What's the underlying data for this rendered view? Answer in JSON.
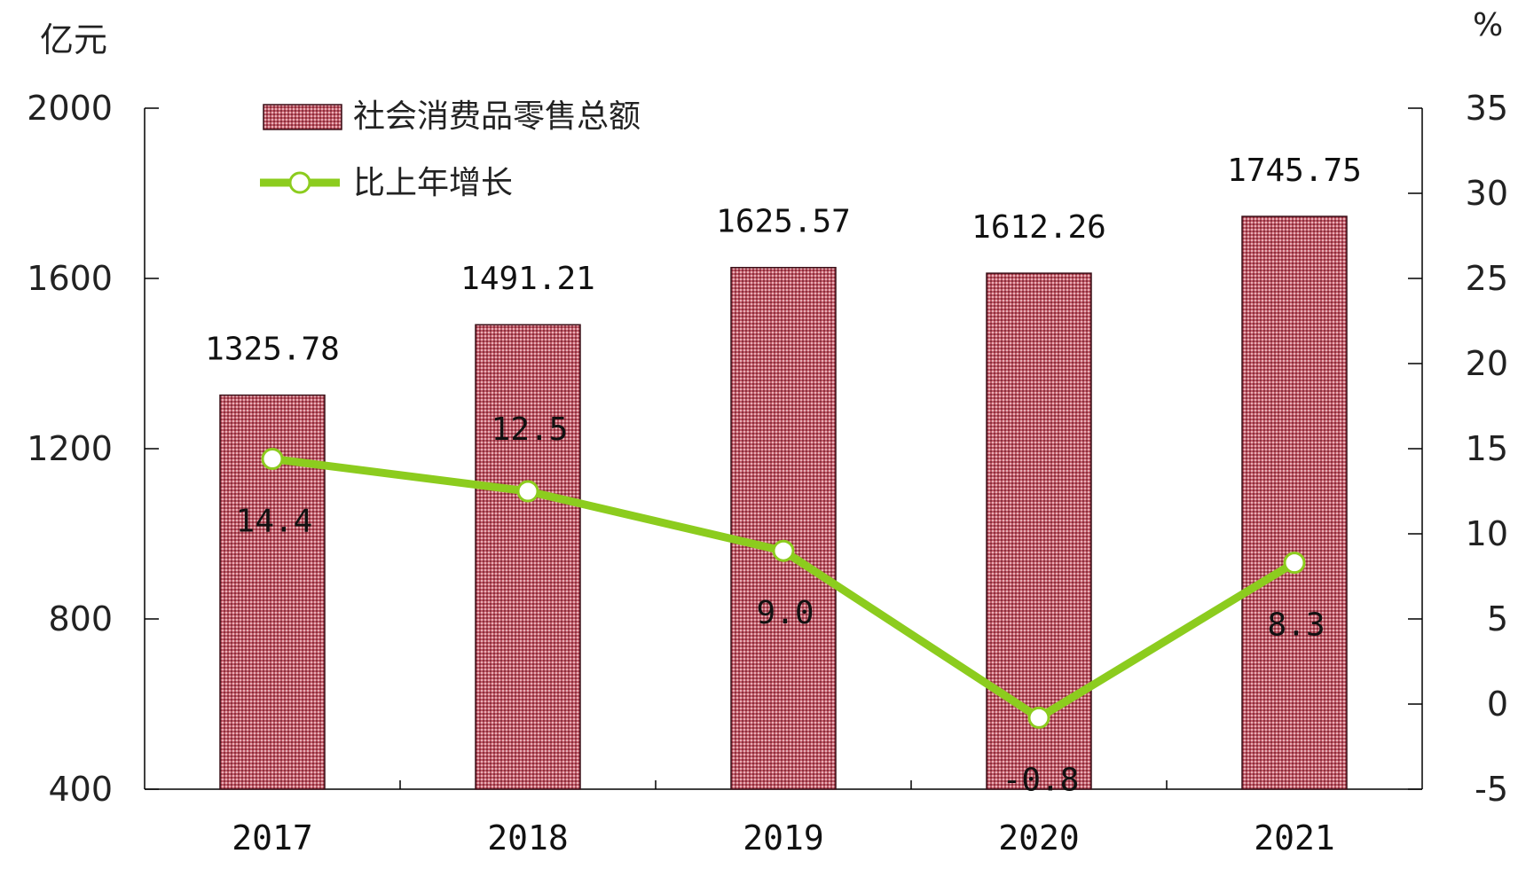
{
  "chart_data": {
    "type": "bar",
    "categories": [
      "2017",
      "2018",
      "2019",
      "2020",
      "2021"
    ],
    "y_left_unit": "亿元",
    "y_right_unit": "%",
    "y_left_ticks": [
      "2000",
      "1600",
      "1200",
      "800",
      "400"
    ],
    "y_right_ticks": [
      "35",
      "30",
      "25",
      "20",
      "15",
      "10",
      "5",
      "0",
      "-5"
    ],
    "y_left_range": [
      400,
      2000
    ],
    "y_right_range": [
      -5,
      35
    ],
    "grid": false,
    "legend_position": "top-left",
    "series": [
      {
        "name": "社会消费品零售总额",
        "type": "bar",
        "axis": "left",
        "values": [
          1325.78,
          1491.21,
          1625.57,
          1612.26,
          1745.75
        ],
        "labels": [
          "1325.78",
          "1491.21",
          "1625.57",
          "1612.26",
          "1745.75"
        ]
      },
      {
        "name": "比上年增长",
        "type": "line",
        "axis": "right",
        "values": [
          14.4,
          12.5,
          9.0,
          -0.8,
          8.3
        ],
        "labels": [
          "14.4",
          "12.5",
          "9.0",
          "-0.8",
          "8.3"
        ]
      }
    ],
    "colors": {
      "bar_fill": "#c05a68",
      "bar_pattern_dark": "#8a2f3c",
      "bar_pattern_light": "#e6b0b7",
      "bar_stroke": "#3a1018",
      "line": "#8ccc1e",
      "marker_fill": "#ffffff"
    }
  }
}
